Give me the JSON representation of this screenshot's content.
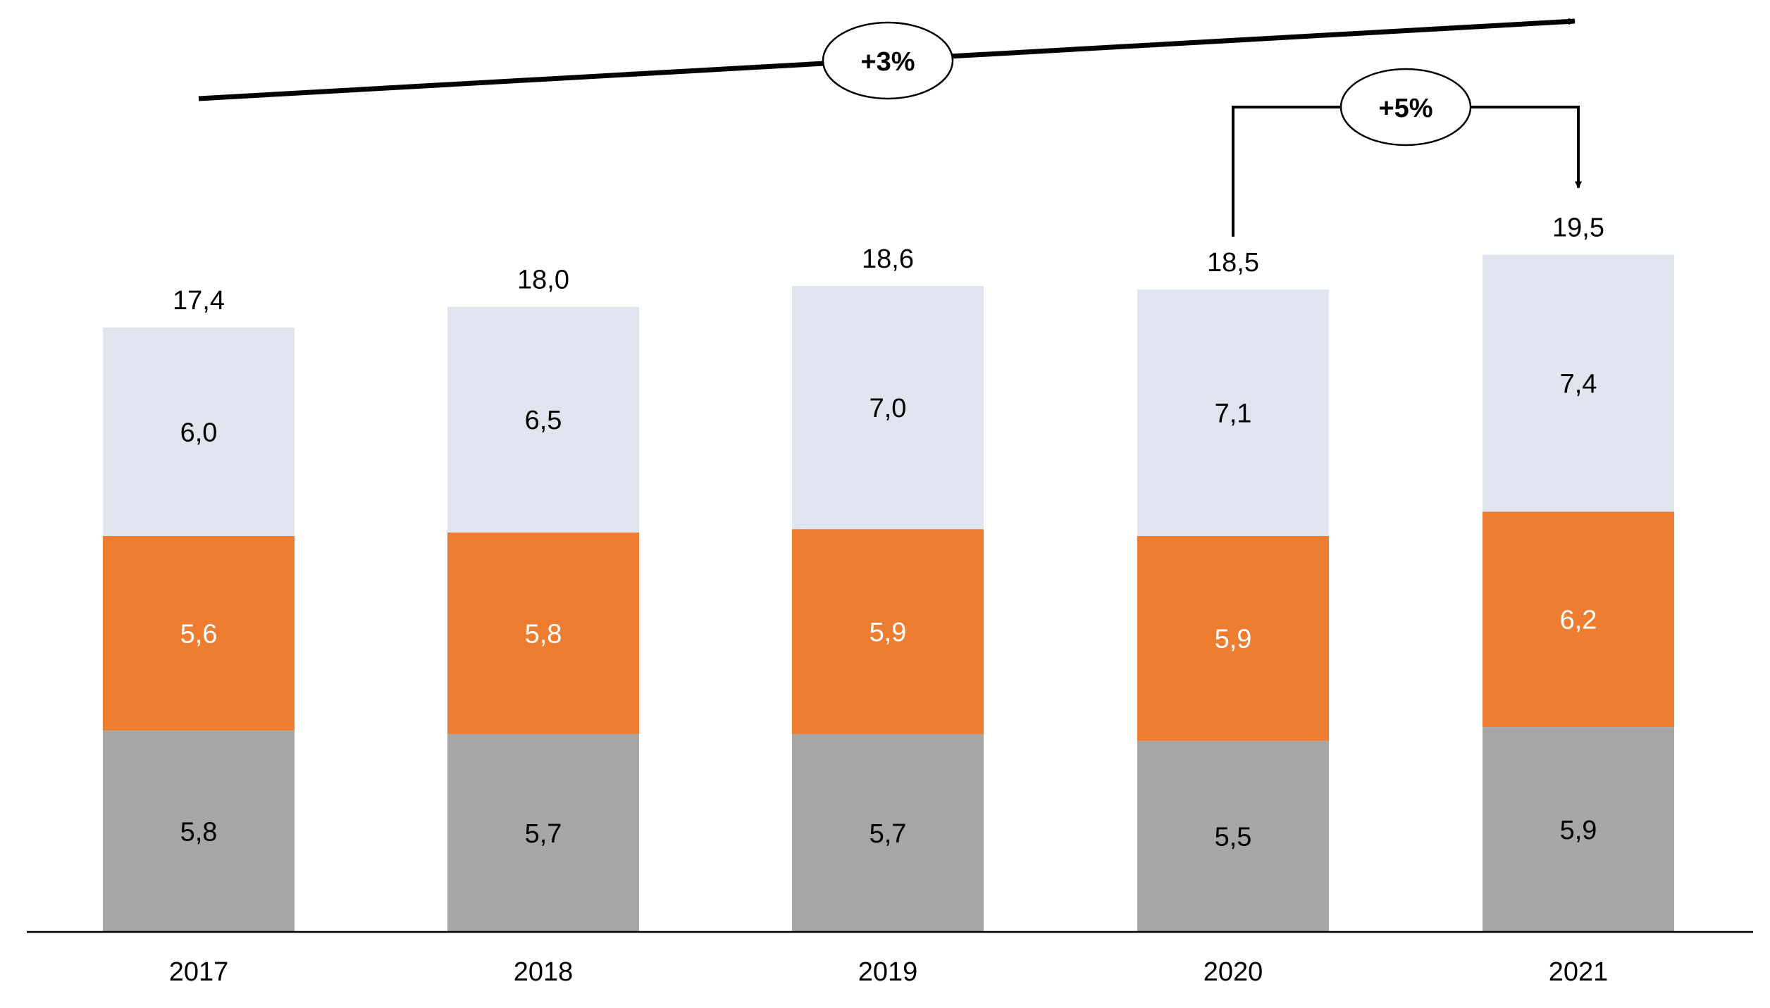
{
  "chart_data": {
    "type": "bar",
    "stacked": true,
    "categories": [
      "2017",
      "2018",
      "2019",
      "2020",
      "2021"
    ],
    "series": [
      {
        "values": [
          5.8,
          5.7,
          5.7,
          5.5,
          5.9
        ],
        "labels": [
          "5,8",
          "5,7",
          "5,7",
          "5,5",
          "5,9"
        ],
        "color": "#a6a6a6",
        "label_color": "#000000"
      },
      {
        "values": [
          5.6,
          5.8,
          5.9,
          5.9,
          6.2
        ],
        "labels": [
          "5,6",
          "5,8",
          "5,9",
          "5,9",
          "6,2"
        ],
        "color": "#ed7d31",
        "label_color": "#ffffff"
      },
      {
        "values": [
          6.0,
          6.5,
          7.0,
          7.1,
          7.4
        ],
        "labels": [
          "6,0",
          "6,5",
          "7,0",
          "7,1",
          "7,4"
        ],
        "color": "#dfe4ef",
        "label_color": "#000000"
      }
    ],
    "totals": [
      17.4,
      18.0,
      18.6,
      18.5,
      19.5
    ],
    "total_labels": [
      "17,4",
      "18,0",
      "18,6",
      "18,5",
      "19,5"
    ],
    "title": "",
    "xlabel": "",
    "ylabel": "",
    "ylim": [
      0,
      19.5
    ],
    "grid": false,
    "legend": "none",
    "annotations": [
      {
        "type": "trend-arrow",
        "text": "+3%",
        "from": "2017",
        "to": "2021"
      },
      {
        "type": "bracket-arrow",
        "text": "+5%",
        "from": "2020",
        "to": "2021"
      }
    ]
  }
}
